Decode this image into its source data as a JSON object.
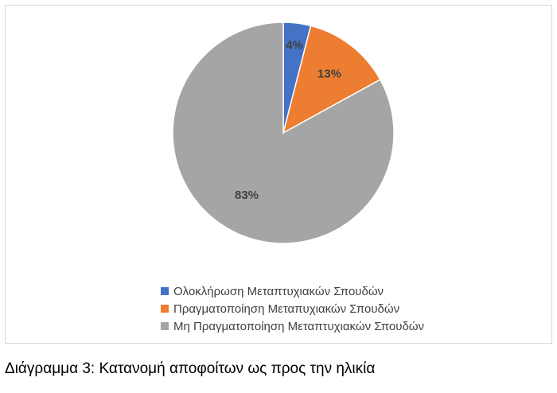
{
  "chart_data": {
    "type": "pie",
    "slices": [
      {
        "label": "Ολοκλήρωση Μεταπτυχιακών Σπουδών",
        "value": 4,
        "display": "4%",
        "color": "#4472c4"
      },
      {
        "label": "Πραγματοποίηση Μεταπυχιακών Σπουδών",
        "value": 13,
        "display": "13%",
        "color": "#ed7d31"
      },
      {
        "label": "Μη Πραγματοποίηση Μεταπτυχιακών Σπουδών",
        "value": 83,
        "display": "83%",
        "color": "#a5a5a5"
      }
    ],
    "start_angle": "12 o'clock",
    "direction": "clockwise",
    "legend_position": "bottom"
  },
  "caption": "Διάγραμμα 3: Κατανομή αποφοίτων ως προς την ηλικία"
}
